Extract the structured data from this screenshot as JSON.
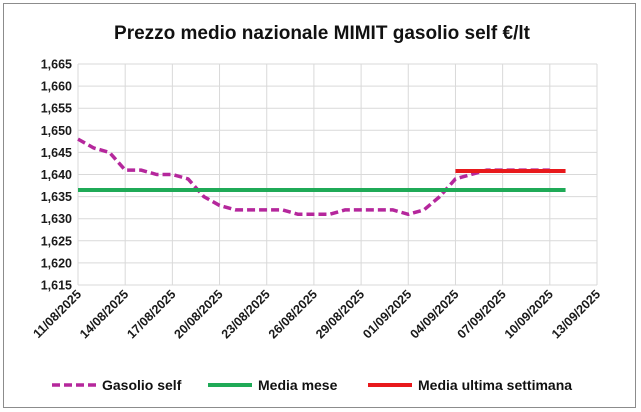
{
  "chart_data": {
    "type": "line",
    "title": "Prezzo medio nazionale MIMIT gasolio self €/lt",
    "xlabel": "",
    "ylabel": "",
    "ylim": [
      1.615,
      1.665
    ],
    "y_ticks": [
      "1,615",
      "1,620",
      "1,625",
      "1,630",
      "1,635",
      "1,640",
      "1,645",
      "1,650",
      "1,655",
      "1,660",
      "1,665"
    ],
    "x_range": [
      "2025-08-11",
      "2025-09-13"
    ],
    "x_ticks": [
      "11/08/2025",
      "14/08/2025",
      "17/08/2025",
      "20/08/2025",
      "23/08/2025",
      "26/08/2025",
      "29/08/2025",
      "01/09/2025",
      "04/09/2025",
      "07/09/2025",
      "10/09/2025",
      "13/09/2025"
    ],
    "grid": true,
    "legend_position": "bottom",
    "series": [
      {
        "name": "Gasolio self",
        "color": "#b5279c",
        "style": "dashed",
        "points": [
          [
            "2025-08-11",
            1.648
          ],
          [
            "2025-08-12",
            1.646
          ],
          [
            "2025-08-13",
            1.645
          ],
          [
            "2025-08-14",
            1.641
          ],
          [
            "2025-08-15",
            1.641
          ],
          [
            "2025-08-16",
            1.64
          ],
          [
            "2025-08-17",
            1.64
          ],
          [
            "2025-08-18",
            1.639
          ],
          [
            "2025-08-19",
            1.635
          ],
          [
            "2025-08-20",
            1.633
          ],
          [
            "2025-08-21",
            1.632
          ],
          [
            "2025-08-22",
            1.632
          ],
          [
            "2025-08-23",
            1.632
          ],
          [
            "2025-08-24",
            1.632
          ],
          [
            "2025-08-25",
            1.631
          ],
          [
            "2025-08-26",
            1.631
          ],
          [
            "2025-08-27",
            1.631
          ],
          [
            "2025-08-28",
            1.632
          ],
          [
            "2025-08-29",
            1.632
          ],
          [
            "2025-08-30",
            1.632
          ],
          [
            "2025-08-31",
            1.632
          ],
          [
            "2025-09-01",
            1.631
          ],
          [
            "2025-09-02",
            1.632
          ],
          [
            "2025-09-03",
            1.635
          ],
          [
            "2025-09-04",
            1.639
          ],
          [
            "2025-09-05",
            1.64
          ],
          [
            "2025-09-06",
            1.641
          ],
          [
            "2025-09-07",
            1.641
          ],
          [
            "2025-09-08",
            1.641
          ],
          [
            "2025-09-09",
            1.641
          ],
          [
            "2025-09-10",
            1.641
          ]
        ]
      },
      {
        "name": "Media mese",
        "color": "#1faa57",
        "style": "solid",
        "points": [
          [
            "2025-08-11",
            1.6365
          ],
          [
            "2025-09-11",
            1.6365
          ]
        ]
      },
      {
        "name": "Media ultima settimana",
        "color": "#e8191c",
        "style": "solid",
        "points": [
          [
            "2025-09-04",
            1.6408
          ],
          [
            "2025-09-11",
            1.6408
          ]
        ]
      }
    ]
  }
}
